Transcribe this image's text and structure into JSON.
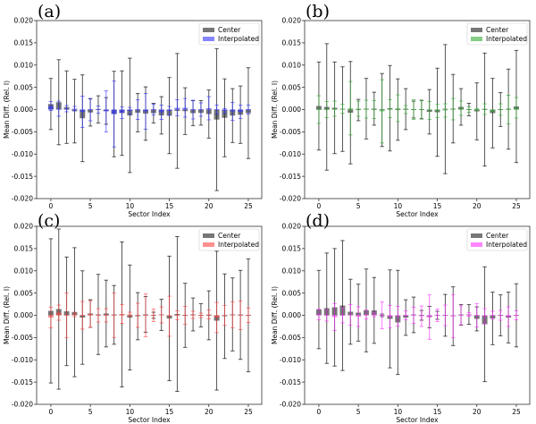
{
  "chart_data": [
    {
      "panel_label": "(a)",
      "type": "bar",
      "xlabel": "Sector Index",
      "ylabel": "Mean Diff. (Rel. I)",
      "ylim": [
        -0.02,
        0.02
      ],
      "xlim": [
        -1.8,
        26.7
      ],
      "yticks": [
        "0.020",
        "0.015",
        "0.010",
        "0.005",
        "0.000",
        "-0.005",
        "-0.010",
        "-0.015",
        "-0.020"
      ],
      "xticks": [
        "0",
        "5",
        "10",
        "15",
        "20",
        "25"
      ],
      "legend_position": "top-right",
      "grid": false,
      "x": [
        0,
        1,
        2,
        3,
        4,
        5,
        6,
        7,
        8,
        9,
        10,
        11,
        12,
        13,
        14,
        15,
        16,
        17,
        18,
        19,
        20,
        21,
        22,
        23,
        24,
        25
      ],
      "series": [
        {
          "name": "Center",
          "color": "#555555",
          "values": [
            0.00125,
            0.00165,
            0.00055,
            -0.00035,
            -0.00195,
            -0.00065,
            5e-05,
            -0.0003,
            -0.001,
            -0.0008,
            -0.0013,
            -0.0007,
            -0.0009,
            -0.0008,
            -0.0013,
            -0.00135,
            -0.0003,
            -0.00035,
            -0.0008,
            -0.00075,
            -0.001,
            -0.00225,
            -0.00185,
            -0.00135,
            -0.00115,
            -0.0008
          ],
          "errors": [
            0.00575,
            0.00955,
            0.00815,
            0.00715,
            0.00975,
            0.00305,
            0.00305,
            0.003,
            0.0096,
            0.0095,
            0.01285,
            0.0043,
            0.006,
            0.0022,
            0.0042,
            0.00855,
            0.0129,
            0.00525,
            0.0028,
            0.00275,
            0.0054,
            0.01595,
            0.00875,
            0.00605,
            0.00645,
            0.0102
          ]
        },
        {
          "name": "Interpolated",
          "color": "#3333ff",
          "values": [
            0.0008,
            0.0002,
            0.0002,
            0.0002,
            -0.0005,
            0,
            0,
            -0.0004,
            -0.001,
            -0.0007,
            -0.0003,
            0,
            -0.0004,
            0,
            -0.0006,
            -0.0003,
            0.0004,
            0.0004,
            0,
            0,
            0.0003,
            0,
            -0.0003,
            -0.0004,
            -0.0005,
            0
          ],
          "errors": [
            0.001,
            0.0017,
            0.0007,
            0.0005,
            0.0035,
            0.0025,
            0.0008,
            0.0046,
            0.0074,
            0.0013,
            0.0008,
            0.0022,
            0.004,
            0.0012,
            0.0016,
            0.001,
            0.0018,
            0.0021,
            0.0021,
            0.0015,
            0.0026,
            0.001,
            0.0005,
            0.002,
            0.0015,
            0.001
          ]
        }
      ]
    },
    {
      "panel_label": "(b)",
      "type": "bar",
      "xlabel": "Sector Index",
      "ylabel": "Mean Diff. (Rel. I)",
      "ylim": [
        -0.02,
        0.02
      ],
      "xlim": [
        -1.8,
        26.7
      ],
      "yticks": [
        "0.020",
        "0.015",
        "0.010",
        "0.005",
        "0.000",
        "-0.005",
        "-0.010",
        "-0.015",
        "-0.020"
      ],
      "xticks": [
        "0",
        "5",
        "10",
        "15",
        "20",
        "25"
      ],
      "legend_position": "top-right",
      "grid": false,
      "x": [
        0,
        1,
        2,
        3,
        4,
        5,
        6,
        7,
        8,
        9,
        10,
        11,
        12,
        13,
        14,
        15,
        16,
        17,
        18,
        19,
        20,
        21,
        22,
        23,
        24,
        25
      ],
      "series": [
        {
          "name": "Center",
          "color": "#555555",
          "values": [
            0.0008,
            0.0006,
            0.0004,
            0.0001,
            -0.0007,
            -0.0001,
            0.0002,
            0.0002,
            -0.0001,
            0.0003,
            0,
            0.0001,
            0,
            0,
            -0.0005,
            -0.0006,
            0.0001,
            0.0002,
            0.0006,
            0,
            -0.0004,
            0,
            -0.0008,
            0,
            0.0001,
            0.0007
          ],
          "errors": [
            0.0099,
            0.0142,
            0.0103,
            0.0095,
            0.0115,
            0.0024,
            0.0068,
            0.0037,
            0.0082,
            0.0096,
            0.0069,
            0.0046,
            0.0019,
            0.0021,
            0.005,
            0.0099,
            0.0145,
            0.0077,
            0.0041,
            0.0014,
            0.0064,
            0.0127,
            0.0078,
            0.0038,
            0.009,
            0.0126
          ]
        },
        {
          "name": "Interpolated",
          "color": "#33aa33",
          "values": [
            0,
            0,
            0.0002,
            0.0002,
            0.0003,
            0.0002,
            0.0001,
            0,
            -0.0004,
            0.0002,
            0.0003,
            0,
            0,
            0,
            -0.0002,
            -0.0003,
            -0.0002,
            0.0001,
            0.0003,
            0,
            0,
            0.0001,
            -0.0003,
            0,
            0,
            0.0004
          ],
          "errors": [
            0.0031,
            0.0018,
            0.0017,
            0.001,
            0.006,
            0.0017,
            0.002,
            0.002,
            0.0071,
            0.002,
            0.003,
            0.0009,
            0.0022,
            0.002,
            0.002,
            0.0015,
            0.0015,
            0.0024,
            0.0016,
            0.0006,
            0.0002,
            0.0012,
            0.0002,
            0.0013,
            0.0032,
            0.0023
          ]
        }
      ]
    },
    {
      "panel_label": "(c)",
      "type": "bar",
      "xlabel": "Sector Index",
      "ylabel": "Mean Diff. (Rel. I)",
      "ylim": [
        -0.02,
        0.02
      ],
      "xlim": [
        -1.8,
        26.7
      ],
      "yticks": [
        "0.020",
        "0.015",
        "0.010",
        "0.005",
        "0.000",
        "-0.005",
        "-0.010",
        "-0.015",
        "-0.020"
      ],
      "xticks": [
        "0",
        "5",
        "10",
        "15",
        "20",
        "25"
      ],
      "legend_position": "top-right",
      "grid": false,
      "x": [
        0,
        1,
        2,
        3,
        4,
        5,
        6,
        7,
        8,
        9,
        10,
        11,
        12,
        13,
        14,
        15,
        16,
        17,
        18,
        19,
        20,
        21,
        22,
        23,
        24,
        25
      ],
      "series": [
        {
          "name": "Center",
          "color": "#555555",
          "values": [
            0.001,
            0.0014,
            0.0009,
            0.0007,
            -0.0005,
            0.0004,
            0.0002,
            0.0004,
            0.0001,
            0.0002,
            -0.0005,
            -0.0002,
            0.0002,
            0,
            0.0001,
            -0.0007,
            0.0003,
            0,
            0.0002,
            0,
            0,
            -0.0012,
            -0.0002,
            0.0002,
            0.0001,
            0
          ],
          "errors": [
            0.0162,
            0.018,
            0.0122,
            0.0145,
            0.0105,
            0.0031,
            0.009,
            0.0075,
            0.0066,
            0.0163,
            0.0118,
            0.0053,
            0.004,
            0.0007,
            0.0035,
            0.014,
            0.0174,
            0.0072,
            0.0037,
            0.0026,
            0.0055,
            0.0156,
            0.0095,
            0.0082,
            0.01,
            0.0127
          ]
        },
        {
          "name": "Interpolated",
          "color": "#ff4444",
          "values": [
            -0.0005,
            0.0006,
            0,
            0.0002,
            0,
            0.0003,
            0,
            0,
            0,
            0.0003,
            0.0002,
            0,
            0,
            0,
            0.0001,
            -0.0002,
            0,
            0,
            0.0001,
            0,
            0.0002,
            -0.0005,
            0,
            0.0001,
            0,
            0
          ],
          "errors": [
            0.0023,
            0.0017,
            0.005,
            0.0005,
            0.0031,
            0.003,
            0.0015,
            0.0015,
            0.005,
            0.0021,
            0.0005,
            0.0027,
            0.0048,
            0.0014,
            0.0018,
            0.0045,
            0.001,
            0.002,
            0.0008,
            0.0005,
            0.001,
            0.0034,
            0.0022,
            0.0029,
            0.0032,
            0.0016
          ]
        }
      ]
    },
    {
      "panel_label": "(d)",
      "type": "bar",
      "xlabel": "Sector Index",
      "ylabel": "Mean Diff. (Rel. I)",
      "ylim": [
        -0.02,
        0.02
      ],
      "xlim": [
        -1.8,
        26.7
      ],
      "yticks": [
        "0.020",
        "0.015",
        "0.010",
        "0.005",
        "0.000",
        "-0.005",
        "-0.010",
        "-0.015",
        "-0.020"
      ],
      "xticks": [
        "0",
        "5",
        "10",
        "15",
        "20",
        "25"
      ],
      "legend_position": "top-right",
      "grid": false,
      "x": [
        0,
        1,
        2,
        3,
        4,
        5,
        6,
        7,
        8,
        9,
        10,
        11,
        12,
        13,
        14,
        15,
        16,
        17,
        18,
        19,
        20,
        21,
        22,
        23,
        24,
        25
      ],
      "series": [
        {
          "name": "Center",
          "color": "#555555",
          "values": [
            0.0013,
            0.0016,
            0.0018,
            0.0022,
            0.0008,
            0.0006,
            0.0011,
            0.0011,
            0,
            -0.0008,
            -0.0016,
            -0.0005,
            0.0001,
            0,
            -0.0004,
            0,
            0,
            -0.0002,
            0.0001,
            0.0002,
            -0.0008,
            -0.002,
            -0.0007,
            0,
            -0.0005,
            0
          ],
          "errors": [
            0.0088,
            0.0124,
            0.0132,
            0.0146,
            0.0073,
            0.0064,
            0.0093,
            0.0074,
            0.0003,
            0.011,
            0.0117,
            0.004,
            0.004,
            0.0011,
            0.0024,
            0.0009,
            0.0047,
            0.0066,
            0.0023,
            0.0022,
            0.0027,
            0.0129,
            0.0059,
            0.0046,
            0.0057,
            0.0071
          ]
        },
        {
          "name": "Interpolated",
          "color": "#ff33ff",
          "values": [
            0.0002,
            0,
            -0.0004,
            0,
            0.0001,
            -0.0003,
            0.0002,
            0.0002,
            0,
            -0.0003,
            -0.0002,
            0,
            0,
            -0.0002,
            -0.0004,
            0,
            0,
            -0.0002,
            0,
            0.0002,
            0,
            -0.0002,
            0,
            0,
            -0.0003,
            0
          ],
          "errors": [
            0.0012,
            0.0013,
            0.003,
            0.0017,
            0.0023,
            0.0022,
            0.001,
            0.0005,
            0.003,
            0.0025,
            0.0022,
            0.001,
            0.0018,
            0.0023,
            0.005,
            0.0014,
            0.0023,
            0.0048,
            0.0021,
            0.0004,
            0.0026,
            0.0017,
            0.0009,
            0.0011,
            0.0022,
            0.001
          ]
        }
      ]
    }
  ]
}
